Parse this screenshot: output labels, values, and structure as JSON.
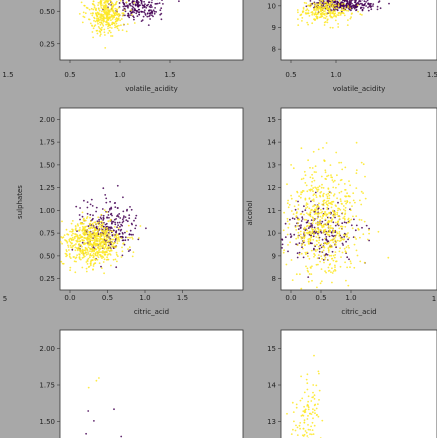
{
  "colors": {
    "background": "#a8a8a8",
    "panel": "#ffffff",
    "high": "#fde725",
    "low": "#440154"
  },
  "chart_data": [
    {
      "type": "scatter",
      "panel": "top-left",
      "yticks": [
        "0.50",
        "0.25"
      ],
      "xticks": [
        "0.5",
        "1.0",
        "1.5"
      ],
      "xtick_outside": [
        "1.5"
      ],
      "xlabel": "volatile_acidity",
      "ylabel": "",
      "xlim": [
        0.0,
        1.75
      ],
      "ylim": [
        0.12,
        0.68
      ],
      "clusters": [
        {
          "name": "yellow",
          "color": "#fde725",
          "cx": 0.45,
          "cy": 0.52,
          "sx": 0.09,
          "sy": 0.09,
          "n": 380
        },
        {
          "name": "purple",
          "color": "#440154",
          "cx": 0.75,
          "cy": 0.58,
          "sx": 0.12,
          "sy": 0.06,
          "n": 200
        }
      ]
    },
    {
      "type": "scatter",
      "panel": "top-right",
      "yticks": [
        "10",
        "9",
        "8"
      ],
      "xticks": [
        "0.5",
        "1.0"
      ],
      "xtick_outside": [
        "1.5"
      ],
      "xlabel": "volatile_acidity",
      "ylabel": "",
      "xlim": [
        0.0,
        1.75
      ],
      "ylim": [
        7.5,
        10.6
      ],
      "clusters": [
        {
          "name": "yellow",
          "color": "#fde725",
          "cx": 0.5,
          "cy": 9.85,
          "sx": 0.14,
          "sy": 0.3,
          "n": 260
        },
        {
          "name": "purple",
          "color": "#440154",
          "cx": 0.7,
          "cy": 10.15,
          "sx": 0.18,
          "sy": 0.15,
          "n": 300
        }
      ]
    },
    {
      "type": "scatter",
      "panel": "middle-left",
      "yticks": [
        "2.00",
        "1.75",
        "1.50",
        "1.25",
        "1.00",
        "0.75",
        "0.50",
        "0.25"
      ],
      "xticks": [
        "0.0",
        "0.5",
        "1.0",
        "1.5"
      ],
      "xtick_outside": [
        "5"
      ],
      "xlabel": "citric_acid",
      "ylabel": "sulphates",
      "xlim": [
        -0.05,
        1.85
      ],
      "ylim": [
        0.1,
        2.1
      ],
      "clusters": [
        {
          "name": "yellow",
          "color": "#fde725",
          "cx": 0.28,
          "cy": 0.62,
          "sx": 0.16,
          "sy": 0.13,
          "n": 650
        },
        {
          "name": "purple",
          "color": "#440154",
          "cx": 0.45,
          "cy": 0.78,
          "sx": 0.15,
          "sy": 0.14,
          "n": 260
        }
      ]
    },
    {
      "type": "scatter",
      "panel": "middle-right",
      "yticks": [
        "15",
        "14",
        "13",
        "12",
        "11",
        "10",
        "9",
        "8"
      ],
      "xticks": [
        "0.0",
        "0.5",
        "1.0"
      ],
      "xtick_outside": [
        "1"
      ],
      "xlabel": "citric_acid",
      "ylabel": "alcohol",
      "xlim": [
        -0.05,
        1.4
      ],
      "ylim": [
        7.6,
        15.4
      ],
      "clusters": [
        {
          "name": "yellow",
          "color": "#fde725",
          "cx": 0.35,
          "cy": 10.6,
          "sx": 0.16,
          "sy": 1.2,
          "n": 650
        },
        {
          "name": "purple",
          "color": "#440154",
          "cx": 0.3,
          "cy": 10.1,
          "sx": 0.2,
          "sy": 0.6,
          "n": 220
        }
      ]
    },
    {
      "type": "scatter",
      "panel": "bottom-left",
      "yticks": [
        "2.00",
        "1.75",
        "1.50"
      ],
      "xticks": [],
      "xtick_outside": [],
      "xlabel": "",
      "ylabel": "",
      "xlim": [
        0.0,
        1.75
      ],
      "ylim": [
        1.35,
        2.1
      ],
      "clusters": [
        {
          "name": "yellow",
          "color": "#fde725",
          "cx": 0.3,
          "cy": 1.7,
          "sx": 0.06,
          "sy": 0.2,
          "n": 3
        },
        {
          "name": "purple",
          "color": "#440154",
          "cx": 0.6,
          "cy": 1.5,
          "sx": 0.3,
          "sy": 0.1,
          "n": 6
        }
      ]
    },
    {
      "type": "scatter",
      "panel": "bottom-right",
      "yticks": [
        "15",
        "14",
        "13"
      ],
      "xticks": [],
      "xtick_outside": [],
      "xlabel": "",
      "ylabel": "",
      "xlim": [
        0.0,
        1.4
      ],
      "ylim": [
        12.4,
        15.4
      ],
      "clusters": [
        {
          "name": "yellow",
          "color": "#fde725",
          "cx": 0.22,
          "cy": 12.9,
          "sx": 0.06,
          "sy": 0.6,
          "n": 120
        }
      ]
    }
  ]
}
